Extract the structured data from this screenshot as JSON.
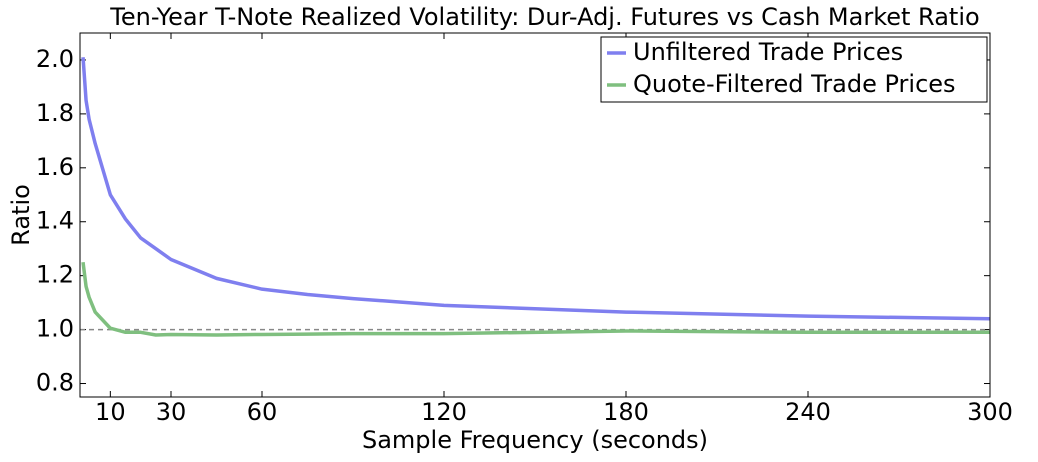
{
  "chart_data": {
    "type": "line",
    "title": "Ten-Year T-Note Realized Volatility: Dur-Adj. Futures vs Cash Market Ratio",
    "xlabel": "Sample Frequency (seconds)",
    "ylabel": "Ratio",
    "x": [
      1,
      2,
      3,
      5,
      10,
      15,
      20,
      25,
      30,
      45,
      60,
      75,
      90,
      120,
      180,
      240,
      300
    ],
    "series": [
      {
        "name": "Unfiltered Trade Prices",
        "color": "#7f7fef",
        "values": [
          2.01,
          1.85,
          1.78,
          1.69,
          1.5,
          1.41,
          1.34,
          1.3,
          1.26,
          1.19,
          1.15,
          1.13,
          1.115,
          1.09,
          1.065,
          1.05,
          1.04
        ]
      },
      {
        "name": "Quote-Filtered Trade Prices",
        "color": "#7fbf7f",
        "values": [
          1.25,
          1.16,
          1.12,
          1.065,
          1.005,
          0.99,
          0.99,
          0.98,
          0.982,
          0.98,
          0.982,
          0.983,
          0.985,
          0.985,
          0.995,
          0.99,
          0.99
        ]
      }
    ],
    "xlim": [
      0,
      300
    ],
    "xticks": [
      10,
      30,
      60,
      120,
      180,
      240,
      300
    ],
    "ylim": [
      0.75,
      2.1
    ],
    "yticks": [
      0.8,
      {
        "value": 1,
        "label": "1.0"
      },
      1.2,
      1.4,
      1.6,
      1.8,
      {
        "value": 2,
        "label": "2.0"
      }
    ],
    "hline": 1,
    "legend": "upper right"
  }
}
